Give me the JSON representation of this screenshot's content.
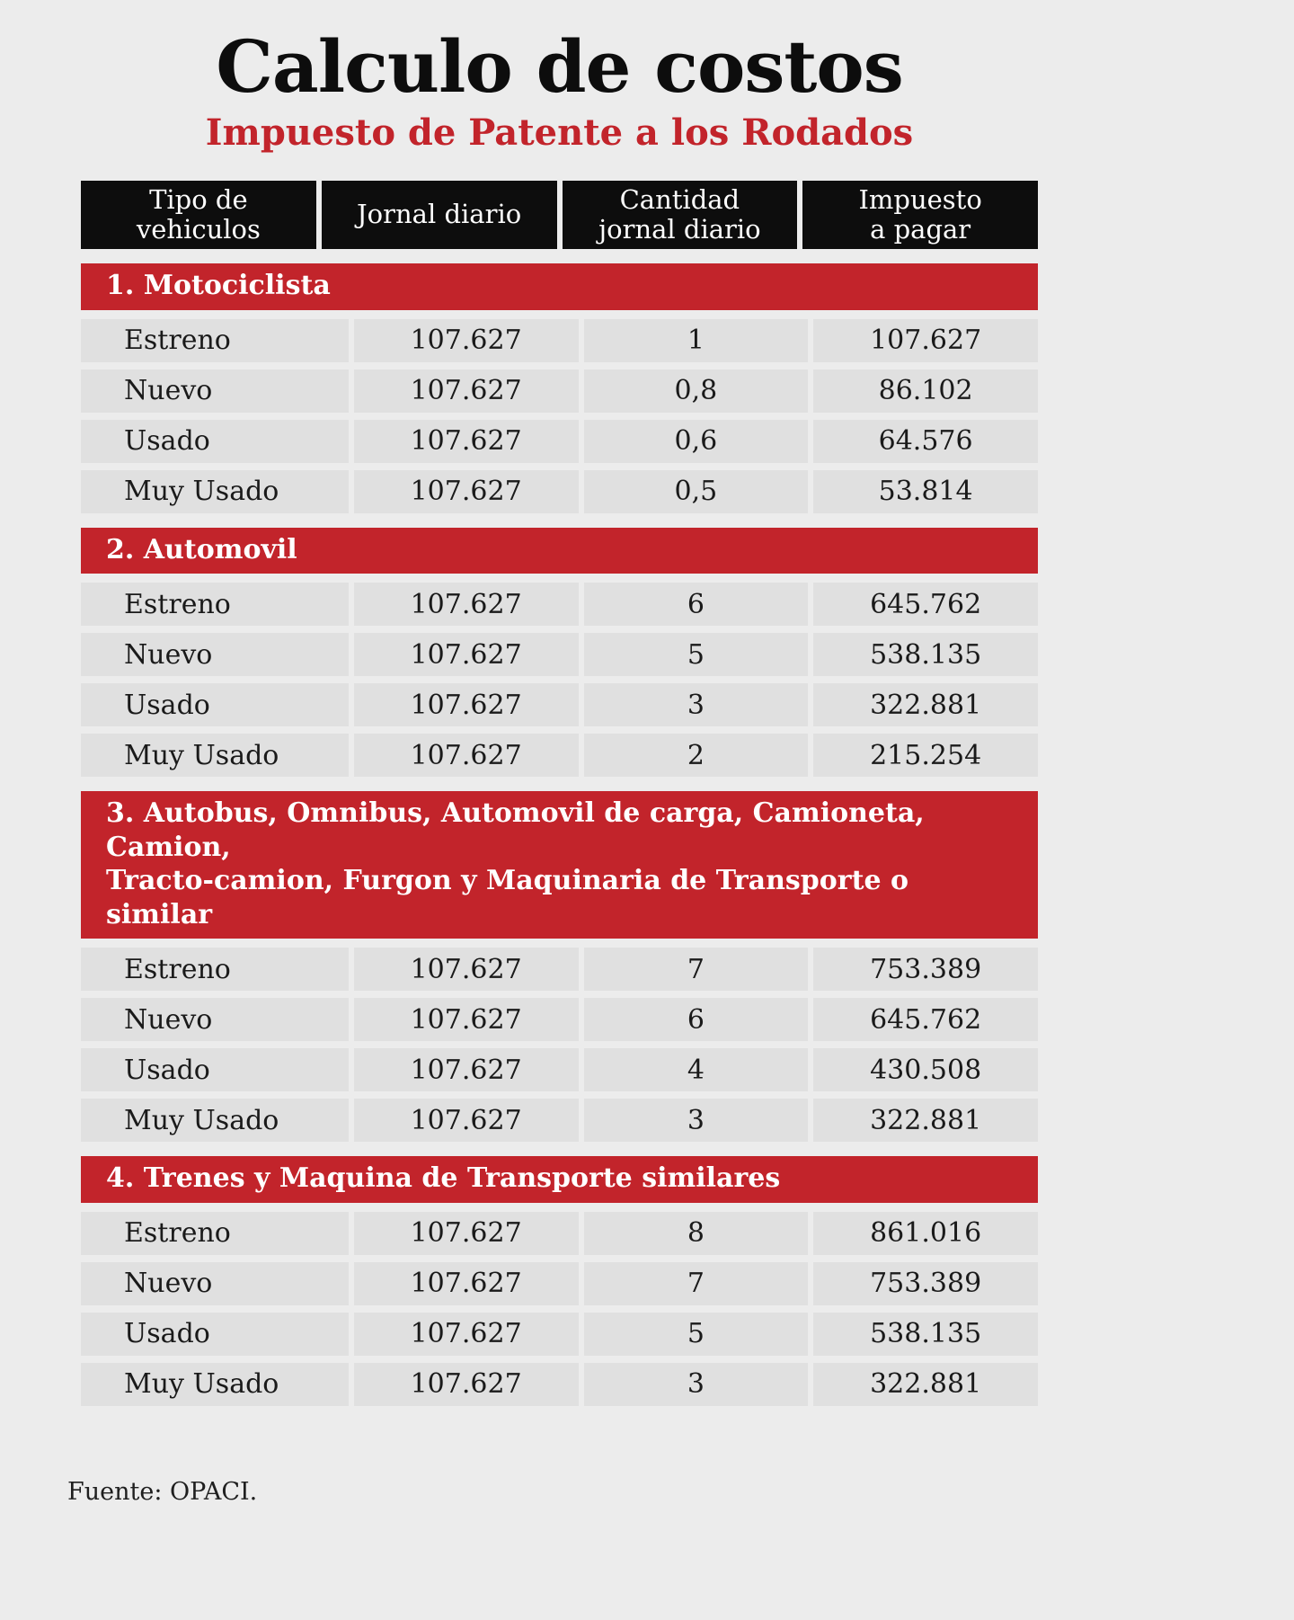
{
  "page": {
    "title": "Calculo de costos",
    "subtitle": "Impuesto de Patente a los Rodados",
    "source": "Fuente: OPACI."
  },
  "colors": {
    "page_background": "#ececec",
    "row_background": "#e0e0e0",
    "header_background": "#0d0d0d",
    "section_red": "#c2242b",
    "subtitle_red": "#c2242b",
    "header_text": "#ffffff",
    "body_text": "#1a1a1a"
  },
  "table": {
    "headers": [
      "Tipo de\nvehiculos",
      "Jornal diario",
      "Cantidad\njornal diario",
      "Impuesto\na pagar"
    ],
    "section_labels": [
      "1. Motociclista",
      "2. Automovil",
      "3. Autobus, Omnibus, Automovil de carga, Camioneta, Camion,\nTracto-camion, Furgon y Maquinaria de Transporte o similar",
      "4. Trenes y Maquina de Transporte similares"
    ]
  },
  "chart_data": {
    "type": "table",
    "title": "Calculo de costos",
    "subtitle": "Impuesto de Patente a los Rodados",
    "columns": [
      "Tipo de vehiculos",
      "Jornal diario",
      "Cantidad jornal diario",
      "Impuesto a pagar"
    ],
    "sections": [
      {
        "label": "1. Motociclista",
        "rows": [
          [
            "Estreno",
            "107.627",
            "1",
            "107.627"
          ],
          [
            "Nuevo",
            "107.627",
            "0,8",
            "86.102"
          ],
          [
            "Usado",
            "107.627",
            "0,6",
            "64.576"
          ],
          [
            "Muy Usado",
            "107.627",
            "0,5",
            "53.814"
          ]
        ]
      },
      {
        "label": "2. Automovil",
        "rows": [
          [
            "Estreno",
            "107.627",
            "6",
            "645.762"
          ],
          [
            "Nuevo",
            "107.627",
            "5",
            "538.135"
          ],
          [
            "Usado",
            "107.627",
            "3",
            "322.881"
          ],
          [
            "Muy Usado",
            "107.627",
            "2",
            "215.254"
          ]
        ]
      },
      {
        "label": "3. Autobus, Omnibus, Automovil de carga, Camioneta, Camion, Tracto-camion, Furgon y Maquinaria de Transporte o similar",
        "rows": [
          [
            "Estreno",
            "107.627",
            "7",
            "753.389"
          ],
          [
            "Nuevo",
            "107.627",
            "6",
            "645.762"
          ],
          [
            "Usado",
            "107.627",
            "4",
            "430.508"
          ],
          [
            "Muy Usado",
            "107.627",
            "3",
            "322.881"
          ]
        ]
      },
      {
        "label": "4. Trenes y Maquina de Transporte similares",
        "rows": [
          [
            "Estreno",
            "107.627",
            "8",
            "861.016"
          ],
          [
            "Nuevo",
            "107.627",
            "7",
            "753.389"
          ],
          [
            "Usado",
            "107.627",
            "5",
            "538.135"
          ],
          [
            "Muy Usado",
            "107.627",
            "3",
            "322.881"
          ]
        ]
      }
    ],
    "source": "Fuente: OPACI."
  }
}
